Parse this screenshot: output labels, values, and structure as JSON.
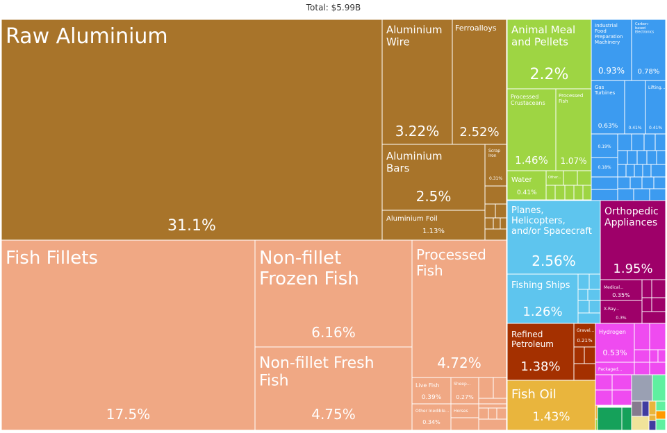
{
  "chart_data": {
    "type": "treemap",
    "title": "Total: $5.99B",
    "colors": {
      "metals": "#a8742a",
      "animal_products": "#f0a884",
      "foodstuffs": "#9ed543",
      "machines": "#3c9bf0",
      "transportation": "#5ec5ee",
      "instruments": "#9e0069",
      "mineral_products": "#a43000",
      "animal_veg_fats": "#e9b53d",
      "chemicals": "#ef4bf0",
      "misc": "#15a15a"
    },
    "nodes": [
      {
        "name": "Raw Aluminium",
        "share": "31.1%",
        "group": "metals"
      },
      {
        "name": "Aluminium Wire",
        "share": "3.22%",
        "group": "metals"
      },
      {
        "name": "Ferroalloys",
        "share": "2.52%",
        "group": "metals"
      },
      {
        "name": "Aluminium Bars",
        "share": "2.5%",
        "group": "metals"
      },
      {
        "name": "Scrap Iron",
        "share": "0.31%",
        "group": "metals"
      },
      {
        "name": "Aluminium Foil",
        "share": "1.13%",
        "group": "metals"
      },
      {
        "name": "Fish Fillets",
        "share": "17.5%",
        "group": "animal_products"
      },
      {
        "name": "Non-fillet Frozen Fish",
        "share": "6.16%",
        "group": "animal_products"
      },
      {
        "name": "Non-fillet Fresh Fish",
        "share": "4.75%",
        "group": "animal_products"
      },
      {
        "name": "Processed Fish",
        "share": "4.72%",
        "group": "animal_products"
      },
      {
        "name": "Live Fish",
        "share": "0.39%",
        "group": "animal_products"
      },
      {
        "name": "Sheep...",
        "share": "0.27%",
        "group": "animal_products"
      },
      {
        "name": "Other Inedible...",
        "share": "0.34%",
        "group": "animal_products"
      },
      {
        "name": "Horses",
        "share": "",
        "group": "animal_products"
      },
      {
        "name": "Animal Meal and Pellets",
        "share": "2.2%",
        "group": "foodstuffs"
      },
      {
        "name": "Processed Crustaceans",
        "share": "1.46%",
        "group": "foodstuffs"
      },
      {
        "name": "Processed Fish",
        "share": "1.07%",
        "group": "foodstuffs"
      },
      {
        "name": "Water",
        "share": "0.41%",
        "group": "foodstuffs"
      },
      {
        "name": "Other...",
        "share": "",
        "group": "foodstuffs"
      },
      {
        "name": "Industrial Food Preparation Machinery",
        "share": "0.93%",
        "group": "machines"
      },
      {
        "name": "Carbon-based Electronics",
        "share": "0.78%",
        "group": "machines"
      },
      {
        "name": "Gas Turbines",
        "share": "0.63%",
        "group": "machines"
      },
      {
        "name": "",
        "share": "0.41%",
        "group": "machines"
      },
      {
        "name": "Lifting...",
        "share": "0.41%",
        "group": "machines"
      },
      {
        "name": "",
        "share": "0.19%",
        "group": "machines"
      },
      {
        "name": "",
        "share": "0.18%",
        "group": "machines"
      },
      {
        "name": "Planes, Helicopters, and/or Spacecraft",
        "share": "2.56%",
        "group": "transportation"
      },
      {
        "name": "Fishing Ships",
        "share": "1.26%",
        "group": "transportation"
      },
      {
        "name": "Orthopedic Appliances",
        "share": "1.95%",
        "group": "instruments"
      },
      {
        "name": "Medical...",
        "share": "0.35%",
        "group": "instruments"
      },
      {
        "name": "X-Ray...",
        "share": "0.3%",
        "group": "instruments"
      },
      {
        "name": "Refined Petroleum",
        "share": "1.38%",
        "group": "mineral_products"
      },
      {
        "name": "Gravel...",
        "share": "0.21%",
        "group": "mineral_products"
      },
      {
        "name": "Fish Oil",
        "share": "1.43%",
        "group": "animal_veg_fats"
      },
      {
        "name": "Hydrogen",
        "share": "0.53%",
        "group": "chemicals"
      },
      {
        "name": "Packaged...",
        "share": "",
        "group": "chemicals"
      }
    ]
  }
}
